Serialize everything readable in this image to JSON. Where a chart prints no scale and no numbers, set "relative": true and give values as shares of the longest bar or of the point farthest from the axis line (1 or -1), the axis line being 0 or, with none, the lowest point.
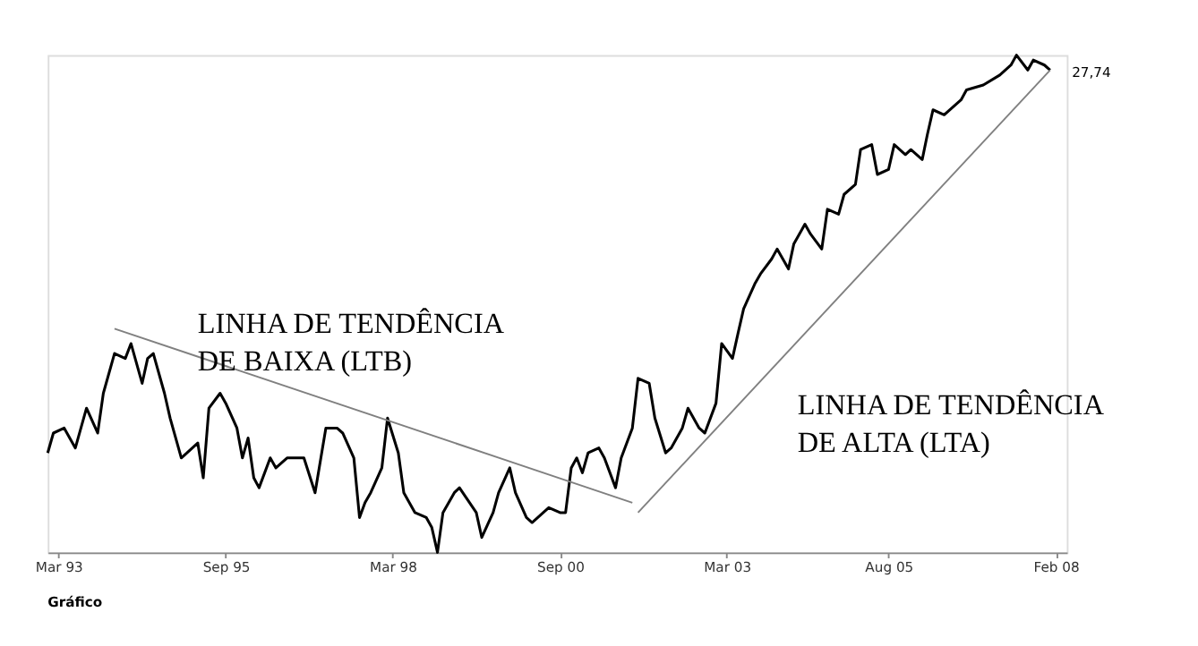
{
  "chart_data": {
    "type": "line",
    "relative": true,
    "grid": false,
    "x": [
      "1993-01",
      "1993-02",
      "1993-04",
      "1993-06",
      "1993-08",
      "1993-10",
      "1993-11",
      "1994-01",
      "1994-03",
      "1994-04",
      "1994-06",
      "1994-07",
      "1994-08",
      "1994-10",
      "1994-11",
      "1995-01",
      "1995-02",
      "1995-04",
      "1995-05",
      "1995-06",
      "1995-08",
      "1995-09",
      "1995-11",
      "1995-12",
      "1996-01",
      "1996-02",
      "1996-03",
      "1996-05",
      "1996-06",
      "1996-08",
      "1996-11",
      "1997-01",
      "1997-03",
      "1997-05",
      "1997-06",
      "1997-08",
      "1997-09",
      "1997-10",
      "1997-11",
      "1998-01",
      "1998-02",
      "1998-04",
      "1998-05",
      "1998-07",
      "1998-09",
      "1998-10",
      "1998-11",
      "1998-12",
      "1999-02",
      "1999-03",
      "1999-06",
      "1999-07",
      "1999-09",
      "1999-10",
      "1999-12",
      "2000-01",
      "2000-03",
      "2000-04",
      "2000-06",
      "2000-07",
      "2000-09",
      "2000-10",
      "2000-11",
      "2000-12",
      "2001-01",
      "2001-02",
      "2001-04",
      "2001-05",
      "2001-07",
      "2001-08",
      "2001-10",
      "2001-11",
      "2002-01",
      "2002-02",
      "2002-04",
      "2002-05",
      "2002-07",
      "2002-08",
      "2002-10",
      "2002-11",
      "2003-01",
      "2003-02",
      "2003-04",
      "2003-05",
      "2003-06",
      "2003-08",
      "2003-09",
      "2003-11",
      "2003-12",
      "2004-02",
      "2004-03",
      "2004-05",
      "2004-06",
      "2004-08",
      "2004-09",
      "2004-11",
      "2004-12",
      "2005-02",
      "2005-03",
      "2005-05",
      "2005-06",
      "2005-08",
      "2005-09",
      "2005-11",
      "2005-12",
      "2006-02",
      "2006-03",
      "2006-04",
      "2006-06",
      "2006-07",
      "2006-09",
      "2006-10",
      "2007-01",
      "2007-04",
      "2007-06",
      "2007-07",
      "2007-09",
      "2007-10",
      "2007-12",
      "2008-01"
    ],
    "xlim": [
      "1993-01",
      "2008-04"
    ],
    "xticks": [
      {
        "value": "1993-03",
        "label": "Mar 93"
      },
      {
        "value": "1995-09",
        "label": "Sep 95"
      },
      {
        "value": "1998-03",
        "label": "Mar 98"
      },
      {
        "value": "2000-09",
        "label": "Sep 00"
      },
      {
        "value": "2003-03",
        "label": "Mar 03"
      },
      {
        "value": "2005-08",
        "label": "Aug 05"
      },
      {
        "value": "2008-02",
        "label": "Feb 08"
      }
    ],
    "series": [
      {
        "color": "#000000",
        "values": [
          0.2,
          0.24,
          0.25,
          0.21,
          0.29,
          0.24,
          0.32,
          0.4,
          0.39,
          0.42,
          0.34,
          0.39,
          0.4,
          0.32,
          0.27,
          0.19,
          0.2,
          0.22,
          0.15,
          0.29,
          0.32,
          0.3,
          0.25,
          0.19,
          0.23,
          0.15,
          0.13,
          0.19,
          0.17,
          0.19,
          0.19,
          0.12,
          0.25,
          0.25,
          0.24,
          0.19,
          0.07,
          0.1,
          0.12,
          0.17,
          0.27,
          0.2,
          0.12,
          0.08,
          0.07,
          0.05,
          0,
          0.08,
          0.12,
          0.13,
          0.08,
          0.03,
          0.08,
          0.12,
          0.17,
          0.12,
          0.07,
          0.06,
          0.08,
          0.09,
          0.08,
          0.08,
          0.17,
          0.19,
          0.16,
          0.2,
          0.21,
          0.19,
          0.13,
          0.19,
          0.25,
          0.35,
          0.34,
          0.27,
          0.2,
          0.21,
          0.25,
          0.29,
          0.25,
          0.24,
          0.3,
          0.42,
          0.39,
          0.44,
          0.49,
          0.54,
          0.56,
          0.59,
          0.61,
          0.57,
          0.62,
          0.66,
          0.64,
          0.61,
          0.69,
          0.68,
          0.72,
          0.74,
          0.81,
          0.82,
          0.76,
          0.77,
          0.82,
          0.8,
          0.81,
          0.79,
          0.84,
          0.89,
          0.88,
          0.89,
          0.91,
          0.93,
          0.94,
          0.96,
          0.98,
          1.0,
          0.97,
          0.99,
          0.98,
          0.97
        ],
        "name": null
      },
      {
        "type": "line",
        "color": "#808080",
        "x": [
          "1994-01",
          "2001-10"
        ],
        "values": [
          0.45,
          0.1
        ]
      },
      {
        "type": "line",
        "color": "#808080",
        "x": [
          "2001-11",
          "2008-01"
        ],
        "values": [
          0.08,
          0.97
        ]
      }
    ],
    "annotations": [
      "LINHA DE TENDÊNCIA\nDE BAIXA (LTB)",
      "LINHA DE TENDÊNCIA\nDE ALTA (LTA)",
      "Gráfico",
      "27,74"
    ]
  }
}
